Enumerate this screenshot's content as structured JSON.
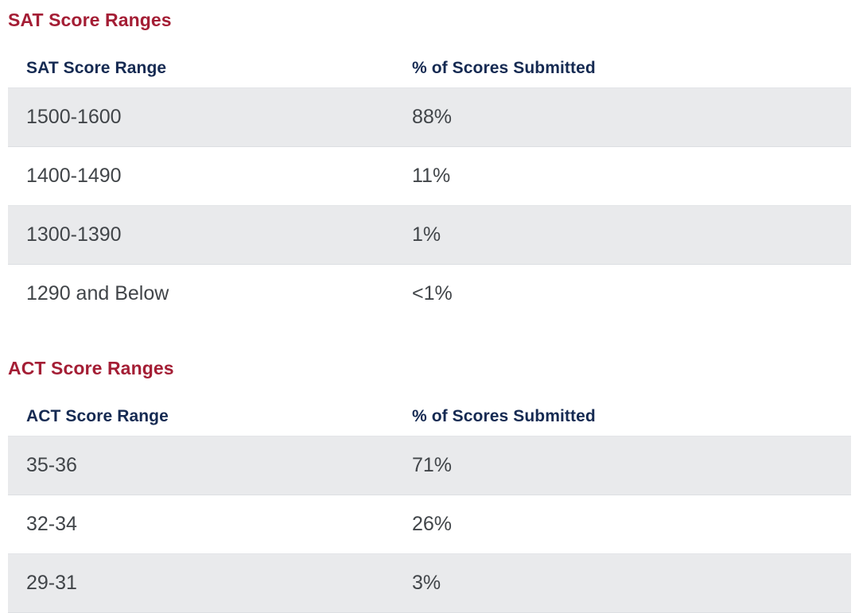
{
  "colors": {
    "heading_text": "#A41E35",
    "column_header_text": "#152A52",
    "body_text": "#414549",
    "alt_row_bg": "#E9EAEC"
  },
  "sections": [
    {
      "heading": "SAT Score Ranges",
      "table": {
        "columns": [
          "SAT Score Range",
          "% of Scores Submitted"
        ],
        "rows": [
          [
            "1500-1600",
            "88%"
          ],
          [
            "1400-1490",
            "11%"
          ],
          [
            "1300-1390",
            "1%"
          ],
          [
            "1290 and Below",
            "<1%"
          ]
        ]
      }
    },
    {
      "heading": "ACT Score Ranges",
      "table": {
        "columns": [
          "ACT Score Range",
          "% of Scores Submitted"
        ],
        "rows": [
          [
            "35-36",
            "71%"
          ],
          [
            "32-34",
            "26%"
          ],
          [
            "29-31",
            "3%"
          ]
        ]
      }
    }
  ]
}
